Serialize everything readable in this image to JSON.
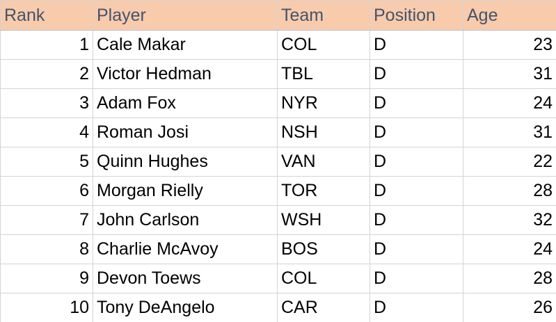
{
  "table": {
    "header": [
      "Rank",
      "Player",
      "Team",
      "Position",
      "Age"
    ],
    "rows": [
      [
        1,
        "Cale Makar",
        "COL",
        "D",
        23
      ],
      [
        2,
        "Victor Hedman",
        "TBL",
        "D",
        31
      ],
      [
        3,
        "Adam Fox",
        "NYR",
        "D",
        24
      ],
      [
        4,
        "Roman Josi",
        "NSH",
        "D",
        31
      ],
      [
        5,
        "Quinn Hughes",
        "VAN",
        "D",
        22
      ],
      [
        6,
        "Morgan Rielly",
        "TOR",
        "D",
        28
      ],
      [
        7,
        "John Carlson",
        "WSH",
        "D",
        32
      ],
      [
        8,
        "Charlie McAvoy",
        "BOS",
        "D",
        24
      ],
      [
        9,
        "Devon Toews",
        "COL",
        "D",
        28
      ],
      [
        10,
        "Tony DeAngelo",
        "CAR",
        "D",
        26
      ]
    ]
  }
}
